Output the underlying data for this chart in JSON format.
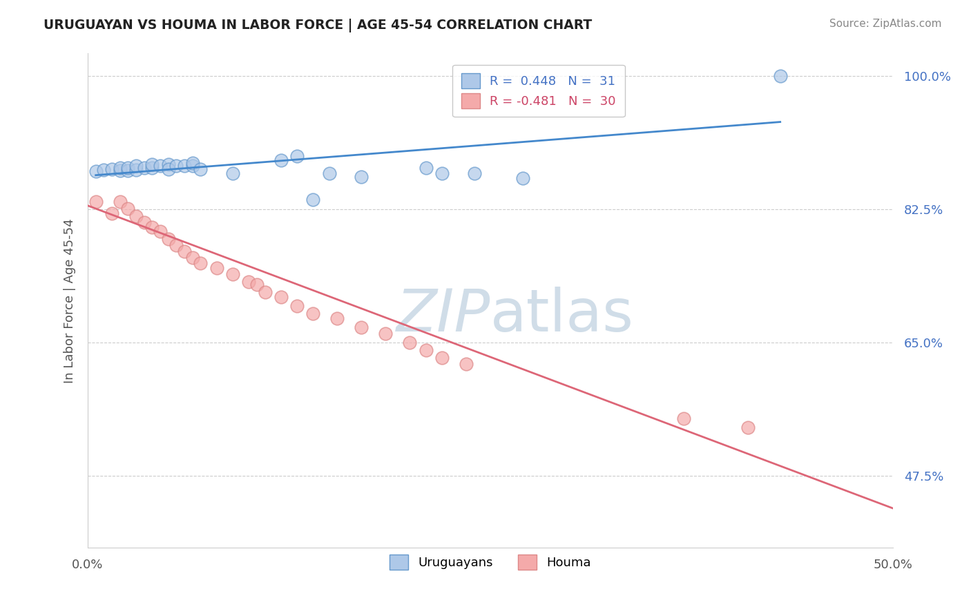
{
  "title": "URUGUAYAN VS HOUMA IN LABOR FORCE | AGE 45-54 CORRELATION CHART",
  "source": "Source: ZipAtlas.com",
  "ylabel": "In Labor Force | Age 45-54",
  "xlim": [
    0.0,
    0.5
  ],
  "ylim": [
    0.38,
    1.03
  ],
  "yticks": [
    0.475,
    0.65,
    0.825,
    1.0
  ],
  "yticklabels": [
    "47.5%",
    "65.0%",
    "82.5%",
    "100.0%"
  ],
  "blue_fill": "#aec8e8",
  "blue_edge": "#6699cc",
  "pink_fill": "#f4aaaa",
  "pink_edge": "#dd8888",
  "blue_line": "#4488cc",
  "pink_line": "#dd6677",
  "grid_color": "#cccccc",
  "watermark_color": "#d0dde8",
  "uruguayan_x": [
    0.005,
    0.01,
    0.015,
    0.02,
    0.02,
    0.025,
    0.025,
    0.03,
    0.03,
    0.035,
    0.04,
    0.04,
    0.045,
    0.05,
    0.05,
    0.055,
    0.06,
    0.065,
    0.065,
    0.07,
    0.09,
    0.12,
    0.13,
    0.15,
    0.17,
    0.21,
    0.22,
    0.24,
    0.27,
    0.43,
    0.14
  ],
  "uruguayan_y": [
    0.875,
    0.877,
    0.878,
    0.876,
    0.88,
    0.876,
    0.88,
    0.877,
    0.882,
    0.88,
    0.88,
    0.884,
    0.882,
    0.884,
    0.878,
    0.882,
    0.882,
    0.882,
    0.886,
    0.878,
    0.872,
    0.89,
    0.895,
    0.872,
    0.868,
    0.88,
    0.872,
    0.872,
    0.866,
    1.0,
    0.838
  ],
  "houma_x": [
    0.005,
    0.015,
    0.02,
    0.025,
    0.03,
    0.035,
    0.04,
    0.045,
    0.05,
    0.055,
    0.06,
    0.065,
    0.07,
    0.08,
    0.09,
    0.1,
    0.105,
    0.11,
    0.12,
    0.13,
    0.14,
    0.155,
    0.17,
    0.185,
    0.2,
    0.21,
    0.22,
    0.235,
    0.37,
    0.41
  ],
  "houma_y": [
    0.835,
    0.82,
    0.835,
    0.826,
    0.816,
    0.808,
    0.802,
    0.796,
    0.786,
    0.778,
    0.77,
    0.762,
    0.754,
    0.748,
    0.74,
    0.73,
    0.726,
    0.716,
    0.71,
    0.698,
    0.688,
    0.682,
    0.67,
    0.662,
    0.65,
    0.64,
    0.63,
    0.622,
    0.55,
    0.538
  ],
  "blue_trend_x0": 0.005,
  "blue_trend_x1": 0.43,
  "blue_trend_y0": 0.87,
  "blue_trend_y1": 0.94,
  "pink_trend_x0": 0.0,
  "pink_trend_x1": 0.5,
  "pink_trend_y0": 0.83,
  "pink_trend_y1": 0.432
}
